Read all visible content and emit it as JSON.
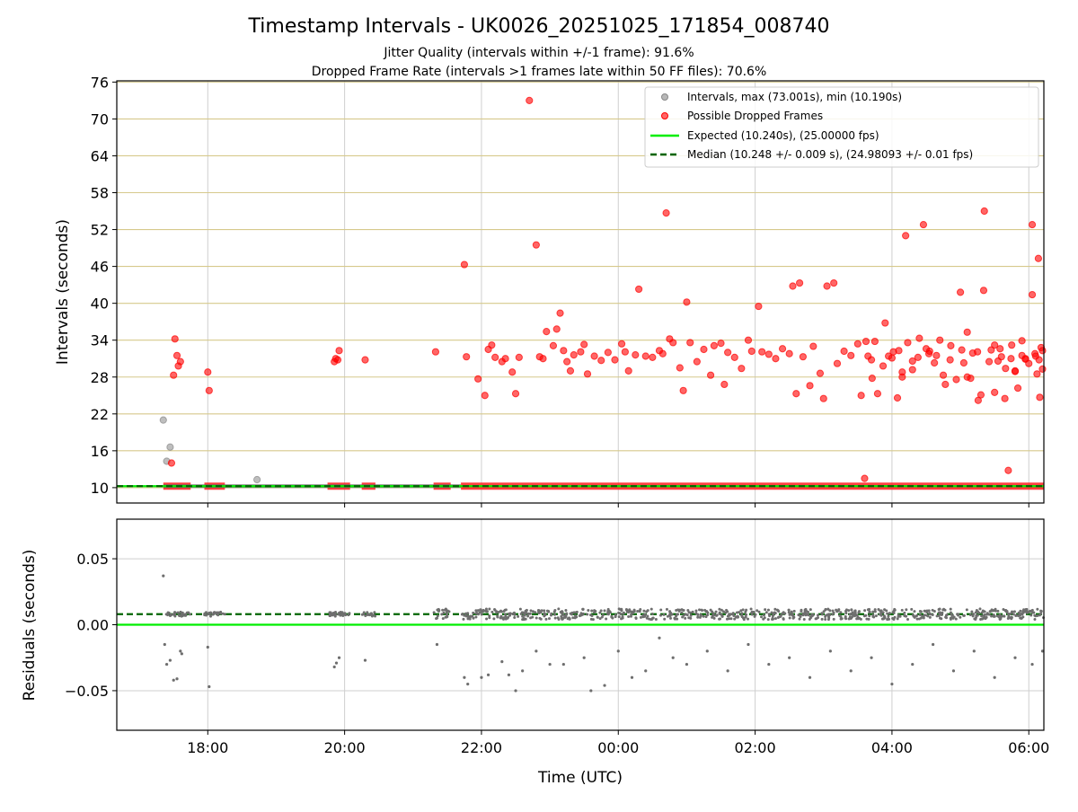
{
  "chart_data": {
    "type": "scatter",
    "title": "Timestamp Intervals - UK0026_20251025_171854_008740",
    "subtitle_1": "Jitter Quality (intervals within +/-1 frame): 91.6%",
    "subtitle_2": "Dropped Frame Rate (intervals >1 frames late within 50 FF files): 70.6%",
    "xlabel": "Time (UTC)",
    "x_ticks": [
      "18:00",
      "20:00",
      "22:00",
      "00:00",
      "02:00",
      "04:00",
      "06:00"
    ],
    "x_range_hours": [
      16.67,
      30.22
    ],
    "top_panel": {
      "ylabel": "Intervals (seconds)",
      "ylim": [
        7.5,
        76.2
      ],
      "y_ticks": [
        "10",
        "16",
        "22",
        "28",
        "34",
        "40",
        "46",
        "52",
        "58",
        "64",
        "70",
        "76"
      ],
      "grid": "horizontal and vertical",
      "legend_placement": "top-right",
      "legend": [
        "Intervals, max (73.001s), min (10.190s)",
        "Possible Dropped Frames",
        "Expected (10.240s), (25.00000 fps)",
        "Median (10.248 +/- 0.009 s), (24.98093 +/- 0.01 fps)"
      ],
      "expected_line": 10.24,
      "median_line": 10.248,
      "gray_outliers": [
        [
          17.35,
          21.0
        ],
        [
          17.4,
          14.3
        ],
        [
          17.45,
          16.6
        ],
        [
          18.72,
          11.3
        ]
      ],
      "dropped_points": [
        [
          17.47,
          14.0
        ],
        [
          17.5,
          28.3
        ],
        [
          17.52,
          34.2
        ],
        [
          17.55,
          31.5
        ],
        [
          17.57,
          29.8
        ],
        [
          17.6,
          30.5
        ],
        [
          18.0,
          28.8
        ],
        [
          18.02,
          25.8
        ],
        [
          19.85,
          30.5
        ],
        [
          19.87,
          31.0
        ],
        [
          19.9,
          30.8
        ],
        [
          19.92,
          32.3
        ],
        [
          20.3,
          30.8
        ],
        [
          21.33,
          32.1
        ],
        [
          21.75,
          46.3
        ],
        [
          21.78,
          31.3
        ],
        [
          21.95,
          27.7
        ],
        [
          22.05,
          25.0
        ],
        [
          22.1,
          32.5
        ],
        [
          22.15,
          33.2
        ],
        [
          22.2,
          31.2
        ],
        [
          22.3,
          30.5
        ],
        [
          22.35,
          31.0
        ],
        [
          22.45,
          28.8
        ],
        [
          22.5,
          25.3
        ],
        [
          22.55,
          31.2
        ],
        [
          22.7,
          73.0
        ],
        [
          22.8,
          49.5
        ],
        [
          22.85,
          31.3
        ],
        [
          22.9,
          31.0
        ],
        [
          22.95,
          35.4
        ],
        [
          23.05,
          33.1
        ],
        [
          23.1,
          35.8
        ],
        [
          23.15,
          38.4
        ],
        [
          23.2,
          32.3
        ],
        [
          23.25,
          30.5
        ],
        [
          23.3,
          29.0
        ],
        [
          23.35,
          31.6
        ],
        [
          23.45,
          32.1
        ],
        [
          23.5,
          33.3
        ],
        [
          23.55,
          28.5
        ],
        [
          23.65,
          31.4
        ],
        [
          23.75,
          30.7
        ],
        [
          23.85,
          32.0
        ],
        [
          23.95,
          30.8
        ],
        [
          24.05,
          33.4
        ],
        [
          24.1,
          32.1
        ],
        [
          24.15,
          29.0
        ],
        [
          24.25,
          31.6
        ],
        [
          24.3,
          42.3
        ],
        [
          24.4,
          31.4
        ],
        [
          24.5,
          31.2
        ],
        [
          24.6,
          32.3
        ],
        [
          24.65,
          31.8
        ],
        [
          24.7,
          54.7
        ],
        [
          24.75,
          34.2
        ],
        [
          24.8,
          33.6
        ],
        [
          24.9,
          29.5
        ],
        [
          24.95,
          25.8
        ],
        [
          25.0,
          40.2
        ],
        [
          25.05,
          33.6
        ],
        [
          25.15,
          30.5
        ],
        [
          25.25,
          32.5
        ],
        [
          25.35,
          28.3
        ],
        [
          25.4,
          33.1
        ],
        [
          25.5,
          33.5
        ],
        [
          25.55,
          26.8
        ],
        [
          25.6,
          32.0
        ],
        [
          25.7,
          31.2
        ],
        [
          25.8,
          29.4
        ],
        [
          25.9,
          34.0
        ],
        [
          25.95,
          32.2
        ],
        [
          26.05,
          39.5
        ],
        [
          26.1,
          32.1
        ],
        [
          26.2,
          31.7
        ],
        [
          26.3,
          31.0
        ],
        [
          26.4,
          32.6
        ],
        [
          26.5,
          31.8
        ],
        [
          26.55,
          42.8
        ],
        [
          26.65,
          43.3
        ],
        [
          26.6,
          25.3
        ],
        [
          26.7,
          31.3
        ],
        [
          26.8,
          26.6
        ],
        [
          26.85,
          33.0
        ],
        [
          26.95,
          28.6
        ],
        [
          27.0,
          24.5
        ],
        [
          27.05,
          42.8
        ],
        [
          27.15,
          43.3
        ],
        [
          27.2,
          30.2
        ],
        [
          27.3,
          32.2
        ],
        [
          27.4,
          31.5
        ],
        [
          27.5,
          33.4
        ],
        [
          27.55,
          25.0
        ],
        [
          27.65,
          31.4
        ],
        [
          27.7,
          30.8
        ],
        [
          27.75,
          33.8
        ],
        [
          27.9,
          36.8
        ],
        [
          28.0,
          31.1
        ],
        [
          28.1,
          32.3
        ],
        [
          28.15,
          28.0
        ],
        [
          28.2,
          51.0
        ],
        [
          28.3,
          29.2
        ],
        [
          28.4,
          34.3
        ],
        [
          28.5,
          32.6
        ],
        [
          28.55,
          32.2
        ],
        [
          28.65,
          31.5
        ],
        [
          28.75,
          28.3
        ],
        [
          28.85,
          30.8
        ],
        [
          29.0,
          41.8
        ],
        [
          29.05,
          30.3
        ],
        [
          29.1,
          35.3
        ],
        [
          29.15,
          27.8
        ],
        [
          29.25,
          32.1
        ],
        [
          29.3,
          25.1
        ],
        [
          29.35,
          55.0
        ],
        [
          29.45,
          32.4
        ],
        [
          29.5,
          25.5
        ],
        [
          29.55,
          30.6
        ],
        [
          29.6,
          31.3
        ],
        [
          29.65,
          24.5
        ],
        [
          29.75,
          33.2
        ],
        [
          29.8,
          29.0
        ],
        [
          29.9,
          31.5
        ],
        [
          29.95,
          30.9
        ],
        [
          30.05,
          52.8
        ],
        [
          30.1,
          31.4
        ],
        [
          30.15,
          30.8
        ],
        [
          30.2,
          32.3
        ]
      ],
      "right_region_dropped": [
        [
          27.62,
          33.8
        ],
        [
          27.71,
          27.8
        ],
        [
          27.79,
          25.3
        ],
        [
          27.87,
          29.8
        ],
        [
          27.95,
          31.4
        ],
        [
          28.02,
          32.1
        ],
        [
          28.08,
          24.6
        ],
        [
          28.15,
          28.8
        ],
        [
          28.23,
          33.6
        ],
        [
          28.3,
          30.6
        ],
        [
          28.38,
          31.2
        ],
        [
          28.46,
          52.8
        ],
        [
          28.54,
          31.8
        ],
        [
          28.62,
          30.3
        ],
        [
          28.7,
          34.0
        ],
        [
          28.78,
          26.8
        ],
        [
          28.86,
          33.1
        ],
        [
          28.94,
          27.6
        ],
        [
          29.02,
          32.4
        ],
        [
          29.1,
          28.0
        ],
        [
          29.18,
          31.9
        ],
        [
          29.26,
          24.2
        ],
        [
          29.34,
          42.1
        ],
        [
          29.42,
          30.5
        ],
        [
          29.5,
          33.2
        ],
        [
          29.58,
          32.6
        ],
        [
          29.66,
          29.4
        ],
        [
          29.74,
          31.0
        ]
      ],
      "far_right_dropped": [
        [
          29.8,
          28.9
        ],
        [
          29.84,
          26.2
        ],
        [
          29.9,
          33.9
        ],
        [
          29.95,
          31.0
        ],
        [
          30.0,
          30.2
        ],
        [
          30.05,
          41.4
        ],
        [
          30.09,
          31.8
        ],
        [
          30.12,
          28.5
        ],
        [
          30.14,
          47.3
        ],
        [
          30.16,
          24.7
        ],
        [
          30.18,
          32.8
        ],
        [
          30.2,
          29.3
        ]
      ],
      "low_dropped_extra": [
        [
          27.6,
          11.5
        ],
        [
          29.7,
          12.8
        ]
      ],
      "baseline_band_segments": [
        [
          17.35,
          17.75
        ],
        [
          17.95,
          18.25
        ],
        [
          19.75,
          20.08
        ],
        [
          20.25,
          20.45
        ],
        [
          21.3,
          21.55
        ],
        [
          21.7,
          30.22
        ]
      ]
    },
    "bottom_panel": {
      "ylabel": "Residuals (seconds)",
      "ylim": [
        -0.08,
        0.08
      ],
      "y_ticks": [
        "0.05",
        "0.00",
        "−0.05"
      ],
      "y_tick_values": [
        0.05,
        0.0,
        -0.05
      ],
      "expected_line": 0.0,
      "median_line": 0.008,
      "residual_cluster_center": 0.008,
      "residual_cluster_spread": 0.004,
      "residual_outliers": [
        [
          17.35,
          0.037
        ],
        [
          17.37,
          -0.015
        ],
        [
          17.4,
          -0.03
        ],
        [
          17.45,
          -0.027
        ],
        [
          17.5,
          -0.042
        ],
        [
          17.55,
          -0.041
        ],
        [
          17.6,
          -0.02
        ],
        [
          17.62,
          -0.022
        ],
        [
          18.0,
          -0.017
        ],
        [
          18.02,
          -0.047
        ],
        [
          19.85,
          -0.032
        ],
        [
          19.88,
          -0.029
        ],
        [
          19.92,
          -0.025
        ],
        [
          20.3,
          -0.027
        ],
        [
          21.35,
          -0.015
        ],
        [
          21.75,
          -0.04
        ],
        [
          21.8,
          -0.045
        ],
        [
          22.0,
          -0.04
        ],
        [
          22.1,
          -0.038
        ],
        [
          22.3,
          -0.028
        ],
        [
          22.4,
          -0.038
        ],
        [
          22.5,
          -0.05
        ],
        [
          22.6,
          -0.035
        ],
        [
          22.8,
          -0.02
        ],
        [
          23.0,
          -0.03
        ],
        [
          23.2,
          -0.03
        ],
        [
          23.5,
          -0.025
        ],
        [
          23.6,
          -0.05
        ],
        [
          23.8,
          -0.046
        ],
        [
          24.0,
          -0.02
        ],
        [
          24.2,
          -0.04
        ],
        [
          24.4,
          -0.035
        ],
        [
          24.6,
          -0.01
        ],
        [
          24.8,
          -0.025
        ],
        [
          25.0,
          -0.03
        ],
        [
          25.3,
          -0.02
        ],
        [
          25.6,
          -0.035
        ],
        [
          25.9,
          -0.015
        ],
        [
          26.2,
          -0.03
        ],
        [
          26.5,
          -0.025
        ],
        [
          26.8,
          -0.04
        ],
        [
          27.1,
          -0.02
        ],
        [
          27.4,
          -0.035
        ],
        [
          27.7,
          -0.025
        ],
        [
          28.0,
          -0.045
        ],
        [
          28.3,
          -0.03
        ],
        [
          28.6,
          -0.015
        ],
        [
          28.9,
          -0.035
        ],
        [
          29.2,
          -0.02
        ],
        [
          29.5,
          -0.04
        ],
        [
          29.8,
          -0.025
        ],
        [
          30.05,
          -0.03
        ],
        [
          30.2,
          -0.02
        ]
      ]
    }
  }
}
